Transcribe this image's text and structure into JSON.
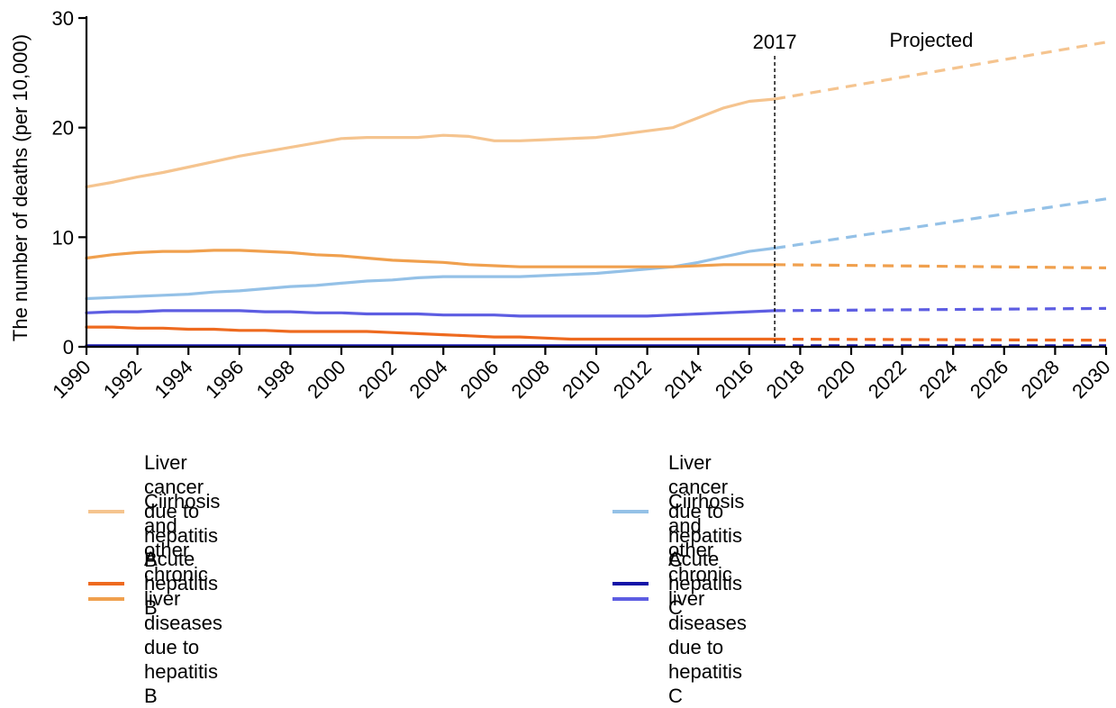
{
  "chart_data": {
    "type": "line",
    "title": "",
    "xlabel": "",
    "ylabel": "The number of deaths (per 10,000)",
    "xlim": [
      1990,
      2030
    ],
    "ylim": [
      0,
      30
    ],
    "x_ticks": [
      1990,
      1992,
      1994,
      1996,
      1998,
      2000,
      2002,
      2004,
      2006,
      2008,
      2010,
      2012,
      2014,
      2016,
      2018,
      2020,
      2022,
      2024,
      2026,
      2028,
      2030
    ],
    "y_ticks": [
      0,
      10,
      20,
      30
    ],
    "x_tick_labels": [
      "1990",
      "1992",
      "1994",
      "1996",
      "1998",
      "2000",
      "2002",
      "2004",
      "2006",
      "2008",
      "2010",
      "2012",
      "2014",
      "2016",
      "2018",
      "2020",
      "2022",
      "2024",
      "2026",
      "2028",
      "2030"
    ],
    "y_tick_labels": [
      "0",
      "10",
      "20",
      "30"
    ],
    "annotations": {
      "marker_year": 2017,
      "marker_label": "2017",
      "projected_label": "Projected"
    },
    "observed_x": [
      1990,
      1991,
      1992,
      1993,
      1994,
      1995,
      1996,
      1997,
      1998,
      1999,
      2000,
      2001,
      2002,
      2003,
      2004,
      2005,
      2006,
      2007,
      2008,
      2009,
      2010,
      2011,
      2012,
      2013,
      2014,
      2015,
      2016,
      2017
    ],
    "projected_x": [
      2017,
      2030
    ],
    "series": [
      {
        "name": "Liver cancer due to hepatitis B",
        "color": "#F5C48F",
        "observed": [
          14.6,
          15.0,
          15.5,
          15.9,
          16.4,
          16.9,
          17.4,
          17.8,
          18.2,
          18.6,
          19.0,
          19.1,
          19.1,
          19.1,
          19.3,
          19.2,
          18.8,
          18.8,
          18.9,
          19.0,
          19.1,
          19.4,
          19.7,
          20.0,
          20.9,
          21.8,
          22.4,
          22.6
        ],
        "projected": [
          22.6,
          27.8
        ]
      },
      {
        "name": "Liver cancer due to hepatitis C",
        "color": "#94C1E7",
        "observed": [
          4.4,
          4.5,
          4.6,
          4.7,
          4.8,
          5.0,
          5.1,
          5.3,
          5.5,
          5.6,
          5.8,
          6.0,
          6.1,
          6.3,
          6.4,
          6.4,
          6.4,
          6.4,
          6.5,
          6.6,
          6.7,
          6.9,
          7.1,
          7.3,
          7.7,
          8.2,
          8.7,
          9.0
        ],
        "projected": [
          9.0,
          13.5
        ]
      },
      {
        "name": "Ciirhosis and other chronic liver diseases\ndue to hepatitis B",
        "color": "#F0A04E",
        "observed": [
          8.1,
          8.4,
          8.6,
          8.7,
          8.7,
          8.8,
          8.8,
          8.7,
          8.6,
          8.4,
          8.3,
          8.1,
          7.9,
          7.8,
          7.7,
          7.5,
          7.4,
          7.3,
          7.3,
          7.3,
          7.3,
          7.3,
          7.3,
          7.3,
          7.4,
          7.5,
          7.5,
          7.5
        ],
        "projected": [
          7.5,
          7.2
        ]
      },
      {
        "name": "Ciirhosis and other chronic liver diseases\ndue to hepatitis C",
        "color": "#5D5DE2",
        "observed": [
          3.1,
          3.2,
          3.2,
          3.3,
          3.3,
          3.3,
          3.3,
          3.2,
          3.2,
          3.1,
          3.1,
          3.0,
          3.0,
          3.0,
          2.9,
          2.9,
          2.9,
          2.8,
          2.8,
          2.8,
          2.8,
          2.8,
          2.8,
          2.9,
          3.0,
          3.1,
          3.2,
          3.3
        ],
        "projected": [
          3.3,
          3.5
        ]
      },
      {
        "name": "Acute hepatitis B",
        "color": "#EE6A1F",
        "observed": [
          1.8,
          1.8,
          1.7,
          1.7,
          1.6,
          1.6,
          1.5,
          1.5,
          1.4,
          1.4,
          1.4,
          1.4,
          1.3,
          1.2,
          1.1,
          1.0,
          0.9,
          0.9,
          0.8,
          0.7,
          0.7,
          0.7,
          0.7,
          0.7,
          0.7,
          0.7,
          0.7,
          0.7
        ],
        "projected": [
          0.7,
          0.6
        ]
      },
      {
        "name": "Acute hepatitis C",
        "color": "#1414A8",
        "observed": [
          0.1,
          0.1,
          0.1,
          0.1,
          0.1,
          0.1,
          0.1,
          0.1,
          0.1,
          0.1,
          0.1,
          0.1,
          0.1,
          0.1,
          0.1,
          0.1,
          0.1,
          0.1,
          0.1,
          0.1,
          0.1,
          0.1,
          0.1,
          0.1,
          0.1,
          0.1,
          0.1,
          0.1
        ],
        "projected": [
          0.1,
          0.1
        ]
      }
    ],
    "legend": {
      "placement": "bottom",
      "left_column": [
        "Liver cancer due to hepatitis B",
        "Ciirhosis and other chronic liver diseases\ndue to hepatitis B",
        "Acute hepatitis B"
      ],
      "right_column": [
        "Liver cancer due to hepatitis C",
        "Ciirhosis and other chronic liver diseases\ndue to hepatitis C",
        "Acute hepatitis C"
      ],
      "left_colors": [
        "#F5C48F",
        "#F0A04E",
        "#EE6A1F"
      ],
      "right_colors": [
        "#94C1E7",
        "#5D5DE2",
        "#1414A8"
      ]
    }
  }
}
